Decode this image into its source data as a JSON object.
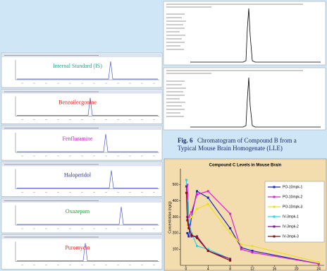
{
  "chromatograms": [
    {
      "label": "Internal Standard (IS)",
      "color": "#1aa88a"
    },
    {
      "label": "Benzoilecgonine",
      "color": "#d42020"
    },
    {
      "label": "Fenfluramine",
      "color": "#d020c0"
    },
    {
      "label": "Haloperidol",
      "color": "#1a2ad0"
    },
    {
      "label": "Oxazepam",
      "color": "#18a030"
    },
    {
      "label": "Puromycin",
      "color": "#d42020"
    }
  ],
  "caption": {
    "label": "Fig. 6",
    "lines": [
      "Chromatogram of Compound B from a",
      "Typical Mouse Brain Homogenate (LLE)"
    ]
  },
  "chart_data": {
    "type": "line",
    "title": "Compound C Levels in Mouse Brain",
    "y_label": "Concentration (ng/g)",
    "xlim": [
      -1,
      25
    ],
    "xticks": [
      0,
      4,
      8,
      12,
      16,
      20,
      24
    ],
    "ylim": [
      0,
      600
    ],
    "yticks": [
      100,
      200,
      300,
      400,
      500
    ],
    "series": [
      {
        "name": "PO-10mpk-1",
        "color": "#1a2ab0",
        "x": [
          0.25,
          0.5,
          1,
          2,
          4,
          8,
          10,
          12,
          24
        ],
        "values": [
          200,
          180,
          300,
          460,
          420,
          230,
          110,
          90,
          10
        ]
      },
      {
        "name": "PO-10mpk-2",
        "color": "#e020d0",
        "x": [
          0.25,
          0.5,
          1,
          2,
          4,
          8,
          10,
          12,
          24
        ],
        "values": [
          500,
          300,
          330,
          440,
          460,
          320,
          100,
          80,
          10
        ]
      },
      {
        "name": "PO-10mpk-3",
        "color": "#e8e020",
        "x": [
          0.25,
          0.5,
          1,
          2,
          4,
          8,
          10,
          12,
          24
        ],
        "values": [
          250,
          280,
          300,
          350,
          380,
          200,
          130,
          120,
          20
        ]
      },
      {
        "name": "IV-3mpk-1",
        "color": "#20d8e8",
        "x": [
          0.083,
          0.25,
          0.5,
          1,
          2,
          4,
          8
        ],
        "values": [
          530,
          400,
          280,
          200,
          120,
          100,
          40
        ]
      },
      {
        "name": "IV-3mpk-2",
        "color": "#7a1a8a",
        "x": [
          0.083,
          0.25,
          0.5,
          1,
          2,
          4,
          8
        ],
        "values": [
          490,
          300,
          250,
          180,
          180,
          90,
          40
        ]
      },
      {
        "name": "IV-3mpk-3",
        "color": "#8a1010",
        "x": [
          0.083,
          0.25,
          0.5,
          1,
          2,
          4,
          8
        ],
        "values": [
          450,
          280,
          230,
          190,
          170,
          90,
          30
        ]
      }
    ]
  }
}
